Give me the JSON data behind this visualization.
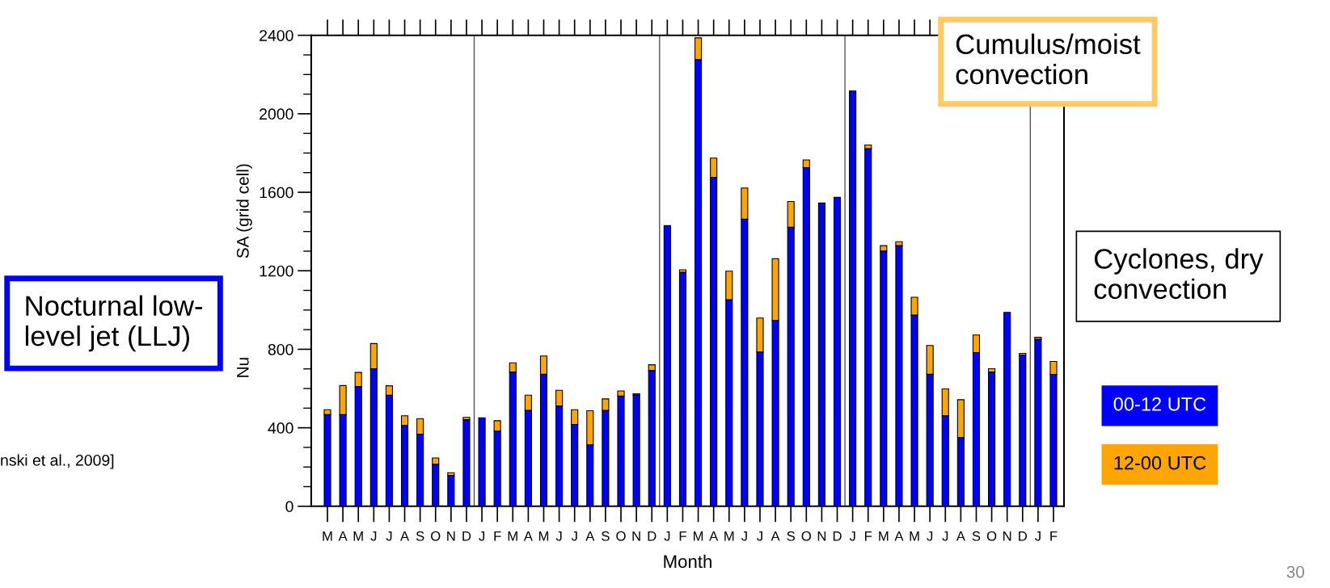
{
  "chart_data": {
    "type": "bar",
    "stacked": true,
    "categories": [
      "M",
      "A",
      "M",
      "J",
      "J",
      "A",
      "S",
      "O",
      "N",
      "D",
      "J",
      "F",
      "M",
      "A",
      "M",
      "J",
      "J",
      "A",
      "S",
      "O",
      "N",
      "D",
      "J",
      "F",
      "M",
      "A",
      "M",
      "J",
      "J",
      "A",
      "S",
      "O",
      "N",
      "D",
      "J",
      "F",
      "M",
      "A",
      "M",
      "J",
      "J",
      "A",
      "S",
      "O",
      "N",
      "D",
      "J",
      "F"
    ],
    "series": [
      {
        "name": "00-12 UTC",
        "color": "#0000ff",
        "values": [
          467,
          467,
          610,
          701,
          566,
          412,
          367,
          214,
          157,
          441,
          451,
          383,
          684,
          489,
          673,
          511,
          417,
          313,
          489,
          562,
          567,
          692,
          1430,
          1193,
          2276,
          1676,
          1053,
          1463,
          786,
          947,
          1422,
          1726,
          1545,
          1574,
          2117,
          1822,
          1301,
          1328,
          974,
          673,
          461,
          350,
          783,
          684,
          988,
          771,
          851,
          672
        ]
      },
      {
        "name": "12-00 UTC",
        "color": "#ffa500",
        "values": [
          25,
          148,
          72,
          128,
          48,
          49,
          79,
          32,
          14,
          12,
          null,
          53,
          47,
          77,
          93,
          80,
          75,
          174,
          58,
          26,
          6,
          29,
          null,
          12,
          111,
          98,
          145,
          159,
          173,
          314,
          131,
          39,
          null,
          null,
          null,
          19,
          27,
          20,
          91,
          146,
          137,
          193,
          90,
          17,
          null,
          8,
          10,
          66
        ]
      }
    ],
    "ylabel": "Nu                     SA (grid cell)",
    "xlabel": "Month",
    "ylim": [
      0,
      2400
    ],
    "yticks": [
      0,
      400,
      800,
      1200,
      1600,
      2000,
      2400
    ],
    "legend": "right",
    "annotations": [
      "Nocturnal low-\nlevel jet (LLJ)",
      "Cumulus/moist\nconvection",
      "Cyclones, dry\nconvection",
      "nski et al., 2009]",
      "30"
    ]
  }
}
